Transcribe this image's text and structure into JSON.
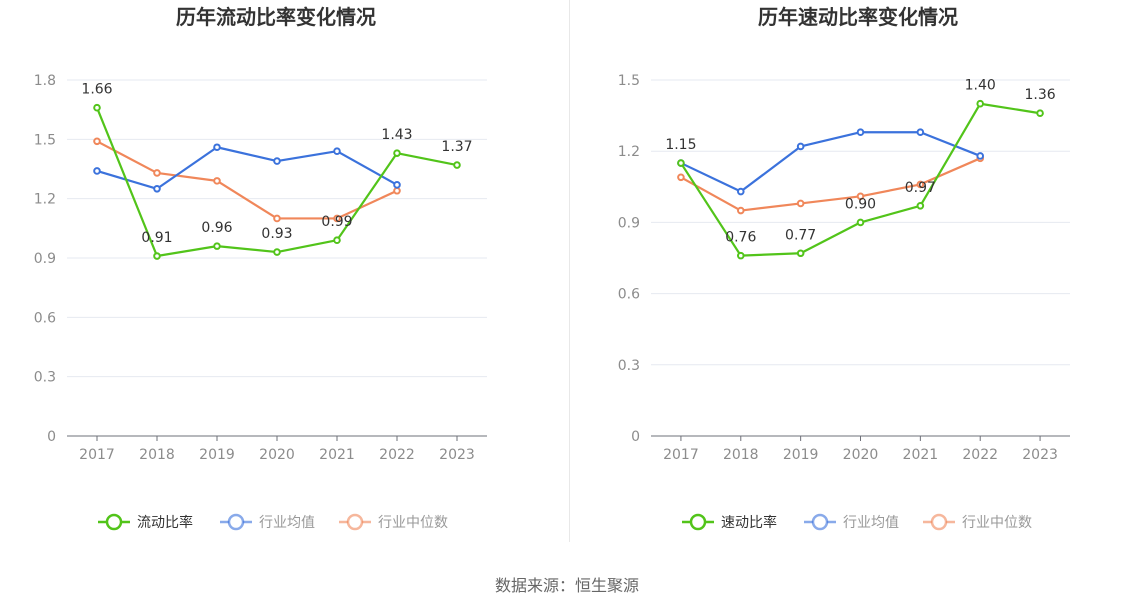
{
  "footer": {
    "source": "数据来源：恒生聚源"
  },
  "chart_data": [
    {
      "type": "line",
      "title": "历年流动比率变化情况",
      "categories": [
        "2017",
        "2018",
        "2019",
        "2020",
        "2021",
        "2022",
        "2023"
      ],
      "ylim": [
        0,
        1.8
      ],
      "yticks": [
        0,
        0.3,
        0.6,
        0.9,
        1.2,
        1.5,
        1.8
      ],
      "ytick_labels": [
        "0",
        "0.3",
        "0.6",
        "0.9",
        "1.2",
        "1.5",
        "1.8"
      ],
      "grid": true,
      "legend_position": "bottom",
      "series": [
        {
          "name": "流动比率",
          "color": "#52c41a",
          "values": [
            1.66,
            0.91,
            0.96,
            0.93,
            0.99,
            1.43,
            1.37
          ],
          "labels": [
            "1.66",
            "0.91",
            "0.96",
            "0.93",
            "0.99",
            "1.43",
            "1.37"
          ]
        },
        {
          "name": "行业均值",
          "color": "#3b72dc",
          "values": [
            1.34,
            1.25,
            1.46,
            1.39,
            1.44,
            1.27,
            null
          ]
        },
        {
          "name": "行业中位数",
          "color": "#f0875a",
          "values": [
            1.49,
            1.33,
            1.29,
            1.1,
            1.1,
            1.24,
            null
          ]
        }
      ]
    },
    {
      "type": "line",
      "title": "历年速动比率变化情况",
      "categories": [
        "2017",
        "2018",
        "2019",
        "2020",
        "2021",
        "2022",
        "2023"
      ],
      "ylim": [
        0,
        1.5
      ],
      "yticks": [
        0,
        0.3,
        0.6,
        0.9,
        1.2,
        1.5
      ],
      "ytick_labels": [
        "0",
        "0.3",
        "0.6",
        "0.9",
        "1.2",
        "1.5"
      ],
      "grid": true,
      "legend_position": "bottom",
      "series": [
        {
          "name": "速动比率",
          "color": "#52c41a",
          "values": [
            1.15,
            0.76,
            0.77,
            0.9,
            0.97,
            1.4,
            1.36
          ],
          "labels": [
            "1.15",
            "0.76",
            "0.77",
            "0.90",
            "0.97",
            "1.40",
            "1.36"
          ]
        },
        {
          "name": "行业均值",
          "color": "#3b72dc",
          "values": [
            1.15,
            1.03,
            1.22,
            1.28,
            1.28,
            1.18,
            null
          ]
        },
        {
          "name": "行业中位数",
          "color": "#f0875a",
          "values": [
            1.09,
            0.95,
            0.98,
            1.01,
            1.06,
            1.17,
            null
          ]
        }
      ]
    }
  ]
}
